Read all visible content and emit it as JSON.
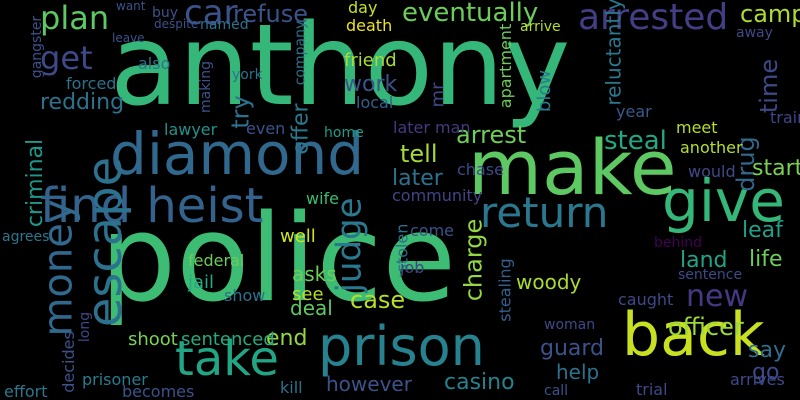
{
  "words": [
    {
      "text": "police",
      "color": "#3dbc74"
    },
    {
      "text": "anthony",
      "color": "#35b779"
    },
    {
      "text": "diamond",
      "color": "#31688e"
    },
    {
      "text": "make",
      "color": "#5ec962"
    },
    {
      "text": "prison",
      "color": "#26828e"
    },
    {
      "text": "back",
      "color": "#c8e020"
    },
    {
      "text": "take",
      "color": "#21a585"
    },
    {
      "text": "give",
      "color": "#35b779"
    },
    {
      "text": "find heist",
      "color": "#33638d"
    },
    {
      "text": "return",
      "color": "#2a788e"
    },
    {
      "text": "escape",
      "color": "#2c728e"
    },
    {
      "text": "money",
      "color": "#31688e"
    },
    {
      "text": "arrested",
      "color": "#433e85"
    },
    {
      "text": "car",
      "color": "#3b528b"
    },
    {
      "text": "plan",
      "color": "#5ec962"
    },
    {
      "text": "get",
      "color": "#3e4989"
    },
    {
      "text": "refuse",
      "color": "#3b528b"
    },
    {
      "text": "eventually",
      "color": "#6ccd5a"
    },
    {
      "text": "camp",
      "color": "#addc30"
    },
    {
      "text": "new",
      "color": "#443983"
    },
    {
      "text": "judge",
      "color": "#2a788e"
    },
    {
      "text": "criminal",
      "color": "#1f988b"
    },
    {
      "text": "officer",
      "color": "#9dd93b"
    },
    {
      "text": "steal",
      "color": "#22a884"
    },
    {
      "text": "arrest",
      "color": "#6ece58"
    },
    {
      "text": "tell",
      "color": "#a5db36"
    },
    {
      "text": "later",
      "color": "#2c728e"
    },
    {
      "text": "work",
      "color": "#3b528b"
    },
    {
      "text": "offer",
      "color": "#2a788e"
    },
    {
      "text": "redding",
      "color": "#2c728e"
    },
    {
      "text": "try",
      "color": "#2c728e"
    },
    {
      "text": "time",
      "color": "#3e4989"
    },
    {
      "text": "drug",
      "color": "#31688e"
    },
    {
      "text": "start",
      "color": "#7ad151"
    },
    {
      "text": "land",
      "color": "#20a486"
    },
    {
      "text": "life",
      "color": "#6ccd5a"
    },
    {
      "text": "leaf",
      "color": "#1fa088"
    },
    {
      "text": "case",
      "color": "#b5de2b"
    },
    {
      "text": "charge",
      "color": "#93d741"
    },
    {
      "text": "woody",
      "color": "#a8db34"
    },
    {
      "text": "end",
      "color": "#95d840"
    },
    {
      "text": "casino",
      "color": "#26828e"
    },
    {
      "text": "however",
      "color": "#3b528b"
    },
    {
      "text": "help",
      "color": "#2c728e"
    },
    {
      "text": "guard",
      "color": "#3b528b"
    },
    {
      "text": "say",
      "color": "#2d708e"
    },
    {
      "text": "go",
      "color": "#3e4989"
    },
    {
      "text": "shoot",
      "color": "#7ad151"
    },
    {
      "text": "sentenced",
      "color": "#25ab82"
    },
    {
      "text": "asks",
      "color": "#6ece58"
    },
    {
      "text": "see",
      "color": "#b5de2b"
    },
    {
      "text": "deal",
      "color": "#5ec962"
    },
    {
      "text": "federal",
      "color": "#6ccd5a"
    },
    {
      "text": "jail",
      "color": "#22a884"
    },
    {
      "text": "show",
      "color": "#2c728e"
    },
    {
      "text": "well",
      "color": "#d2e21b"
    },
    {
      "text": "wife",
      "color": "#3dbc74"
    },
    {
      "text": "friend",
      "color": "#a8db34"
    },
    {
      "text": "local",
      "color": "#355f8d"
    },
    {
      "text": "mr",
      "color": "#3e4989"
    },
    {
      "text": "day",
      "color": "#c8e020"
    },
    {
      "text": "death",
      "color": "#ece51b"
    },
    {
      "text": "apartment",
      "color": "#6ece58"
    },
    {
      "text": "reluctantly",
      "color": "#2a788e"
    },
    {
      "text": "blow",
      "color": "#287c8e"
    },
    {
      "text": "later man",
      "color": "#443983"
    },
    {
      "text": "community",
      "color": "#414487"
    },
    {
      "text": "chase",
      "color": "#3e4989"
    },
    {
      "text": "come",
      "color": "#3b528b"
    },
    {
      "text": "stolen",
      "color": "#2c728e"
    },
    {
      "text": "job",
      "color": "#414487"
    },
    {
      "text": "stealing",
      "color": "#355f8d"
    },
    {
      "text": "caught",
      "color": "#3e4989"
    },
    {
      "text": "meet",
      "color": "#b8de29"
    },
    {
      "text": "another",
      "color": "#b8de29"
    },
    {
      "text": "would",
      "color": "#3e4989"
    },
    {
      "text": "sentence",
      "color": "#3e4989"
    },
    {
      "text": "behind",
      "color": "#440154"
    },
    {
      "text": "year",
      "color": "#38598c"
    },
    {
      "text": "train",
      "color": "#414487"
    },
    {
      "text": "even",
      "color": "#3b528b"
    },
    {
      "text": "lawyer",
      "color": "#21918c"
    },
    {
      "text": "home",
      "color": "#1f9e89"
    },
    {
      "text": "prisoner",
      "color": "#287c8e"
    },
    {
      "text": "becomes",
      "color": "#3b528b"
    },
    {
      "text": "kill",
      "color": "#2c728e"
    },
    {
      "text": "effort",
      "color": "#2a788e"
    },
    {
      "text": "decides",
      "color": "#3b528b"
    },
    {
      "text": "long",
      "color": "#3e4989"
    },
    {
      "text": "agrees",
      "color": "#2a788e"
    },
    {
      "text": "also",
      "color": "#2c728e"
    },
    {
      "text": "forced",
      "color": "#2c728e"
    },
    {
      "text": "making",
      "color": "#3b528b"
    },
    {
      "text": "york",
      "color": "#2c728e"
    },
    {
      "text": "named",
      "color": "#2c728e"
    },
    {
      "text": "company",
      "color": "#2c728e"
    },
    {
      "text": "arrive",
      "color": "#b5de2b"
    },
    {
      "text": "away",
      "color": "#3e4989"
    },
    {
      "text": "woman",
      "color": "#3e4989"
    },
    {
      "text": "trial",
      "color": "#3e4989"
    },
    {
      "text": "arrives",
      "color": "#3e4989"
    },
    {
      "text": "call",
      "color": "#3b528b"
    },
    {
      "text": "buy",
      "color": "#3b528b"
    },
    {
      "text": "want",
      "color": "#3b528b"
    },
    {
      "text": "leave",
      "color": "#3b528b"
    },
    {
      "text": "gangster",
      "color": "#3b528b"
    },
    {
      "text": "despite",
      "color": "#3b528b"
    }
  ]
}
